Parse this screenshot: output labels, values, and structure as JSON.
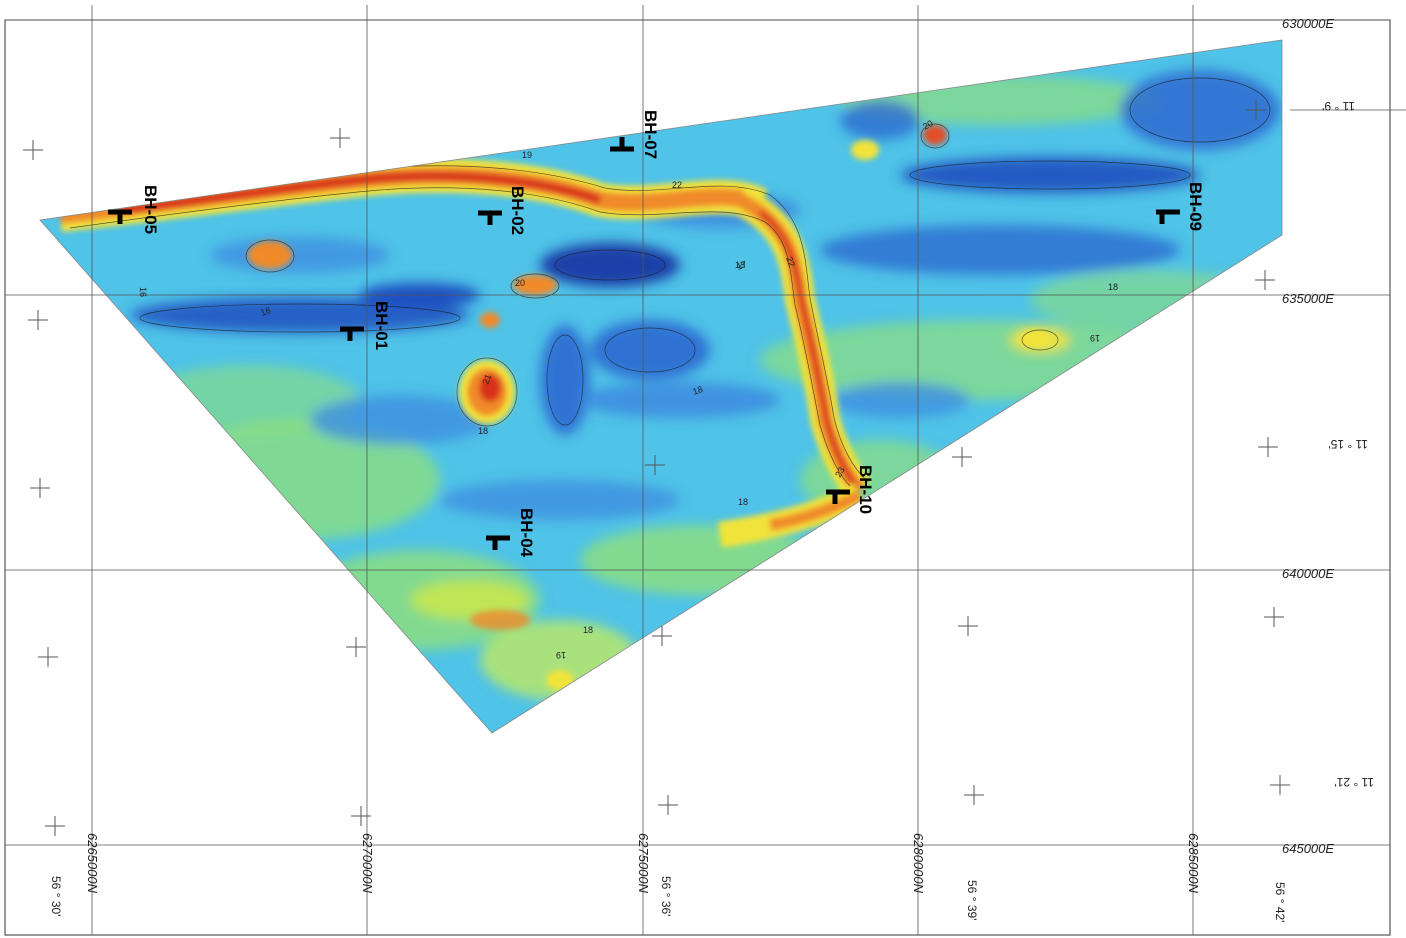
{
  "grid": {
    "easting_labels": [
      "630000E",
      "635000E",
      "640000E",
      "645000E"
    ],
    "northing_labels": [
      "6265000N",
      "6270000N",
      "6275000N",
      "6280000N",
      "6285000N"
    ]
  },
  "geo_labels": {
    "lon": [
      "11 ° 9'",
      "11 ° 15'",
      "11 ° 21'"
    ],
    "lat": [
      "56 ° 30'",
      "56 ° 36'",
      "56 ° 39'",
      "56 ° 42'"
    ]
  },
  "boreholes": [
    "BH-05",
    "BH-07",
    "BH-02",
    "BH-01",
    "BH-09",
    "BH-10",
    "BH-04"
  ],
  "contour_labels": [
    "16",
    "16",
    "17",
    "18",
    "18",
    "18",
    "18",
    "18",
    "18",
    "19",
    "19",
    "19",
    "20",
    "20",
    "21",
    "22",
    "22",
    "23"
  ],
  "colors": {
    "deep_blue": "#1f4fbf",
    "blue": "#3f8ee0",
    "cyan": "#4fc3e8",
    "green": "#8fe07a",
    "yellow": "#f2e33a",
    "orange": "#f08a2a",
    "red": "#d8321c"
  }
}
